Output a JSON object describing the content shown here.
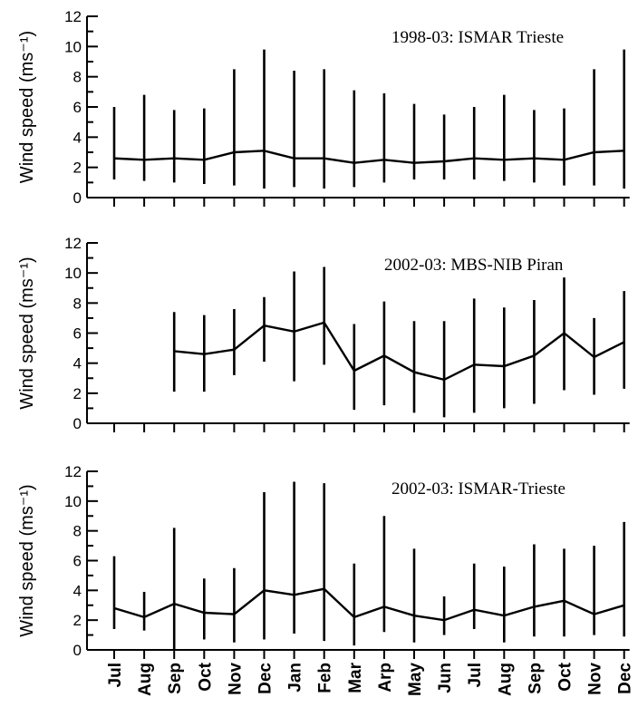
{
  "chart_data": [
    {
      "type": "line",
      "title": "1998-03: ISMAR Trieste",
      "ylabel": "Wind speed (ms⁻¹)",
      "ylim": [
        0,
        12
      ],
      "yticks": [
        "0",
        "2",
        "4",
        "6",
        "8",
        "10",
        "12"
      ],
      "categories": [
        "Jul",
        "Aug",
        "Sep",
        "Oct",
        "Nov",
        "Dec",
        "Jan",
        "Feb",
        "Mar",
        "Arp",
        "May",
        "Jun",
        "Jul",
        "Aug",
        "Sep",
        "Oct",
        "Nov",
        "Dec"
      ],
      "show_xtick_labels": false,
      "series": [
        {
          "mean": [
            2.6,
            2.5,
            2.6,
            2.5,
            3.0,
            3.1,
            2.6,
            2.6,
            2.3,
            2.5,
            2.3,
            2.4,
            2.6,
            2.5,
            2.6,
            2.5,
            3.0,
            3.1
          ],
          "min": [
            1.2,
            1.1,
            1.0,
            0.9,
            0.8,
            0.6,
            0.7,
            0.6,
            0.7,
            1.0,
            1.2,
            1.2,
            1.2,
            1.1,
            1.0,
            0.8,
            0.8,
            0.6
          ],
          "max": [
            6.0,
            6.8,
            5.8,
            5.9,
            8.5,
            9.8,
            8.4,
            8.5,
            7.1,
            6.9,
            6.2,
            5.5,
            6.0,
            6.8,
            5.8,
            5.9,
            8.5,
            9.8
          ]
        }
      ]
    },
    {
      "type": "line",
      "title": "2002-03: MBS-NIB Piran",
      "ylabel": "Wind speed (ms⁻¹)",
      "ylim": [
        0,
        12
      ],
      "yticks": [
        "0",
        "2",
        "4",
        "6",
        "8",
        "10",
        "12"
      ],
      "categories": [
        "Jul",
        "Aug",
        "Sep",
        "Oct",
        "Nov",
        "Dec",
        "Jan",
        "Feb",
        "Mar",
        "Arp",
        "May",
        "Jun",
        "Jul",
        "Aug",
        "Sep",
        "Oct",
        "Nov",
        "Dec"
      ],
      "show_xtick_labels": false,
      "series": [
        {
          "mean": [
            null,
            null,
            4.8,
            4.6,
            4.9,
            6.5,
            6.1,
            6.7,
            3.5,
            4.5,
            3.4,
            2.9,
            3.9,
            3.8,
            4.5,
            6.0,
            4.4,
            5.4
          ],
          "min": [
            null,
            null,
            2.1,
            2.1,
            3.2,
            4.1,
            2.8,
            3.9,
            0.9,
            1.2,
            0.7,
            0.4,
            0.7,
            1.0,
            1.3,
            2.2,
            1.9,
            2.3
          ],
          "max": [
            null,
            null,
            7.4,
            7.2,
            7.6,
            8.4,
            10.1,
            10.4,
            6.6,
            8.1,
            6.8,
            6.8,
            8.3,
            7.7,
            8.2,
            9.7,
            7.0,
            8.8
          ]
        }
      ]
    },
    {
      "type": "line",
      "title": "2002-03: ISMAR-Trieste",
      "ylabel": "Wind speed (ms⁻¹)",
      "ylim": [
        0,
        12
      ],
      "yticks": [
        "0",
        "2",
        "4",
        "6",
        "8",
        "10",
        "12"
      ],
      "categories": [
        "Jul",
        "Aug",
        "Sep",
        "Oct",
        "Nov",
        "Dec",
        "Jan",
        "Feb",
        "Mar",
        "Arp",
        "May",
        "Jun",
        "Jul",
        "Aug",
        "Sep",
        "Oct",
        "Nov",
        "Dec"
      ],
      "show_xtick_labels": true,
      "series": [
        {
          "mean": [
            2.8,
            2.2,
            3.1,
            2.5,
            2.4,
            4.0,
            3.7,
            4.1,
            2.2,
            2.9,
            2.3,
            2.0,
            2.7,
            2.3,
            2.9,
            3.3,
            2.4,
            3.0
          ],
          "min": [
            1.4,
            1.3,
            0.0,
            0.7,
            0.5,
            0.7,
            1.1,
            0.6,
            0.3,
            1.2,
            0.5,
            1.0,
            1.4,
            0.5,
            0.9,
            0.9,
            1.0,
            0.9
          ],
          "max": [
            6.3,
            3.9,
            8.2,
            4.8,
            5.5,
            10.6,
            11.3,
            11.2,
            5.8,
            9.0,
            6.8,
            3.6,
            5.8,
            5.6,
            7.1,
            6.8,
            7.0,
            8.6
          ]
        }
      ]
    }
  ]
}
